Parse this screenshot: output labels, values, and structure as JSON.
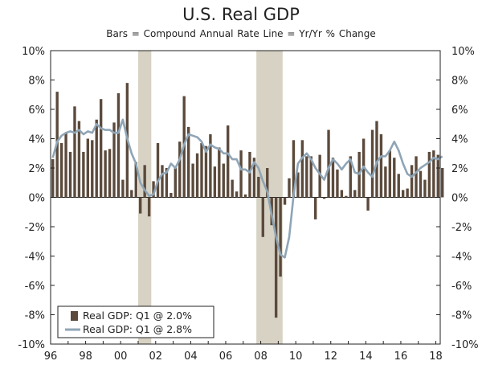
{
  "chart_data": {
    "type": "bar",
    "title": "U.S. Real GDP",
    "subtitle": "Bars = Compound Annual Rate     Line = Yr/Yr % Change",
    "ylim": [
      -10,
      10
    ],
    "y_ticks": [
      "10%",
      "8%",
      "6%",
      "4%",
      "2%",
      "0%",
      "-2%",
      "-4%",
      "-6%",
      "-8%",
      "-10%"
    ],
    "x_ticks": [
      "96",
      "98",
      "00",
      "02",
      "04",
      "06",
      "08",
      "10",
      "12",
      "14",
      "16",
      "18"
    ],
    "x_range": [
      1996.0,
      2018.25
    ],
    "recessions": [
      [
        2001.0,
        2001.75
      ],
      [
        2007.75,
        2009.25
      ]
    ],
    "colors": {
      "bars": "#5b4a3c",
      "line": "#8fa5b6",
      "recession": "#d7d2c4"
    },
    "legend_position": "bottom-left",
    "series": [
      {
        "name": "Real GDP: Q1 @ 2.0%",
        "kind": "bar",
        "start": 1996.0,
        "step": 0.25,
        "values": [
          2.6,
          7.2,
          3.7,
          4.4,
          3.1,
          6.2,
          5.2,
          3.1,
          4.0,
          3.9,
          5.3,
          6.7,
          3.2,
          3.3,
          5.1,
          7.1,
          1.2,
          7.8,
          0.5,
          2.4,
          -1.1,
          2.2,
          -1.3,
          1.1,
          3.7,
          2.2,
          2.0,
          0.3,
          2.1,
          3.8,
          6.9,
          4.8,
          2.3,
          3.0,
          3.7,
          3.5,
          4.3,
          2.1,
          3.4,
          2.3,
          4.9,
          1.2,
          0.4,
          3.2,
          0.2,
          3.1,
          2.7,
          1.4,
          -2.7,
          2.0,
          -1.9,
          -8.2,
          -5.4,
          -0.5,
          1.3,
          3.9,
          1.7,
          3.9,
          2.8,
          2.8,
          -1.5,
          2.9,
          -0.1,
          4.6,
          2.7,
          1.9,
          0.5,
          0.1,
          2.8,
          0.5,
          3.1,
          4.0,
          -0.9,
          4.6,
          5.2,
          4.3,
          2.1,
          3.2,
          2.7,
          1.6,
          0.5,
          0.6,
          2.2,
          2.8,
          1.8,
          1.2,
          3.1,
          3.2,
          2.9,
          2.0
        ]
      },
      {
        "name": "Real GDP: Q1 @ 2.8%",
        "kind": "line",
        "start": 1996.0,
        "step": 0.25,
        "values": [
          2.7,
          3.8,
          4.2,
          4.4,
          4.5,
          4.4,
          4.6,
          4.3,
          4.5,
          4.4,
          5.0,
          4.7,
          4.6,
          4.6,
          4.4,
          4.4,
          5.3,
          4.0,
          3.0,
          2.3,
          1.0,
          0.5,
          0.1,
          0.2,
          1.1,
          1.6,
          1.7,
          2.3,
          2.0,
          2.6,
          3.6,
          4.3,
          4.2,
          4.1,
          3.8,
          3.1,
          3.6,
          3.4,
          3.3,
          3.0,
          3.0,
          2.6,
          2.6,
          1.9,
          1.9,
          1.7,
          2.4,
          2.0,
          1.1,
          0.4,
          -1.2,
          -2.7,
          -3.9,
          -4.1,
          -2.7,
          0.1,
          2.3,
          2.7,
          3.0,
          2.6,
          2.0,
          1.6,
          1.2,
          2.0,
          2.6,
          2.3,
          1.9,
          2.3,
          2.6,
          1.7,
          1.6,
          2.1,
          1.7,
          1.4,
          2.4,
          2.8,
          2.8,
          3.2,
          3.8,
          3.2,
          2.3,
          1.6,
          1.4,
          1.7,
          2.0,
          2.2,
          2.4,
          2.7,
          2.6,
          2.8
        ]
      }
    ]
  }
}
